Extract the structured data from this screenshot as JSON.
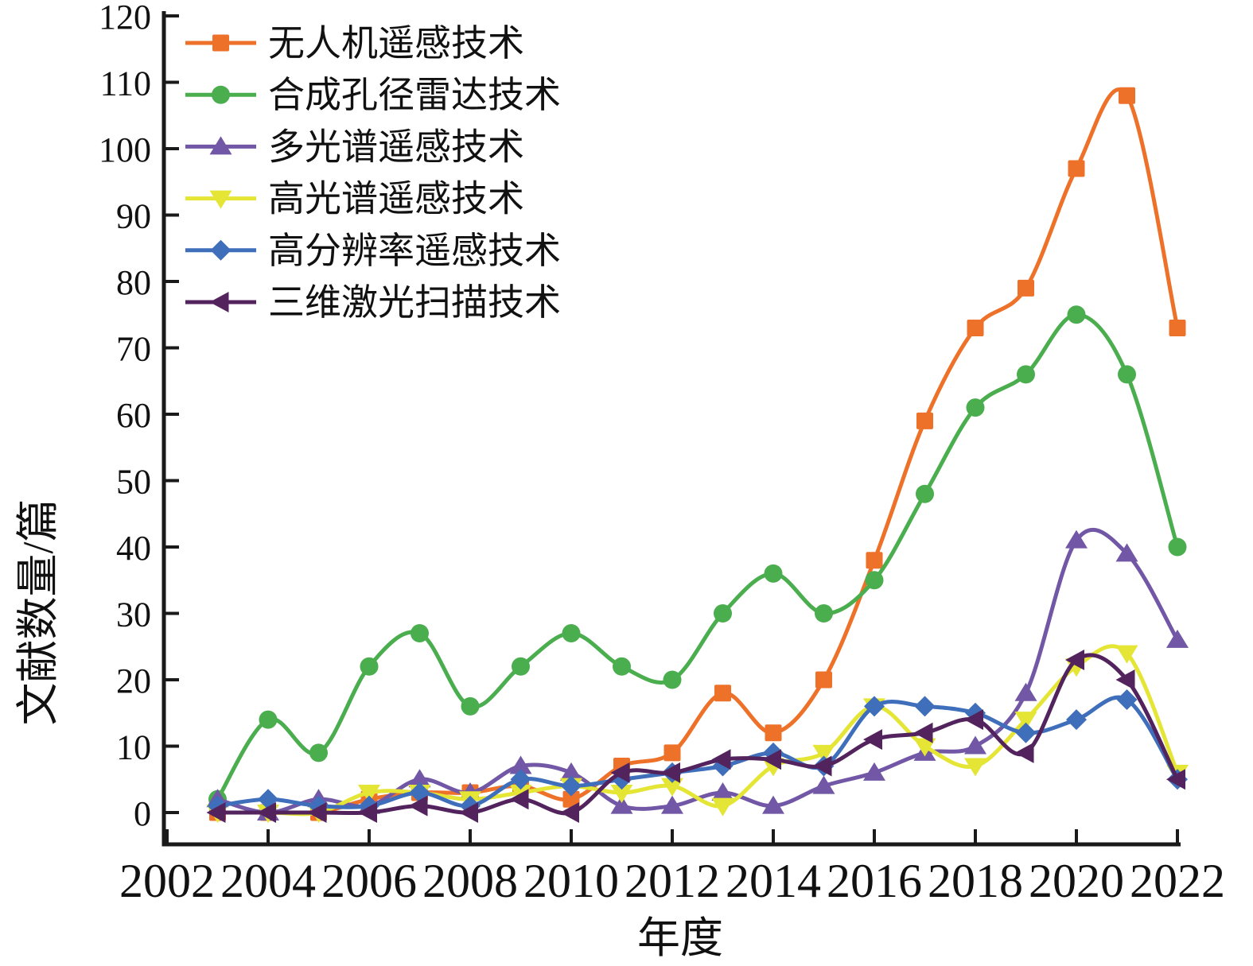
{
  "chart_data": {
    "type": "line",
    "title": "",
    "xlabel": "年度",
    "ylabel": "文献数量/篇",
    "x": [
      2003,
      2004,
      2005,
      2006,
      2007,
      2008,
      2009,
      2010,
      2011,
      2012,
      2013,
      2014,
      2015,
      2016,
      2017,
      2018,
      2019,
      2020,
      2021,
      2022
    ],
    "xticks": [
      2002,
      2004,
      2006,
      2008,
      2010,
      2012,
      2014,
      2016,
      2018,
      2020,
      2022
    ],
    "yticks": [
      0,
      10,
      20,
      30,
      40,
      50,
      60,
      70,
      80,
      90,
      100,
      110,
      120
    ],
    "xlim": [
      2002,
      2022.5
    ],
    "ylim": [
      0,
      120
    ],
    "grid": false,
    "legend_position": "upper-left",
    "axis_color": "#1a1a1a",
    "series": [
      {
        "name": "无人机遥感技术",
        "marker": "square",
        "color": "#ED7128",
        "values": [
          0,
          0,
          0,
          2,
          3,
          3,
          4,
          2,
          7,
          9,
          18,
          12,
          20,
          38,
          59,
          73,
          79,
          97,
          108,
          73
        ]
      },
      {
        "name": "合成孔径雷达技术",
        "marker": "circle",
        "color": "#4AAD4E",
        "values": [
          2,
          14,
          9,
          22,
          27,
          16,
          22,
          27,
          22,
          20,
          30,
          36,
          30,
          35,
          48,
          61,
          66,
          75,
          66,
          40
        ]
      },
      {
        "name": "多光谱遥感技术",
        "marker": "triangle-up",
        "color": "#7157A5",
        "values": [
          2,
          0,
          2,
          1,
          5,
          3,
          7,
          6,
          1,
          1,
          3,
          1,
          4,
          6,
          9,
          10,
          18,
          41,
          39,
          26
        ]
      },
      {
        "name": "高光谱遥感技术",
        "marker": "triangle-down",
        "color": "#E4E535",
        "values": [
          0,
          0,
          0,
          3,
          3,
          2,
          3,
          4,
          3,
          4,
          1,
          7,
          9,
          16,
          10,
          7,
          14,
          22,
          24,
          6
        ]
      },
      {
        "name": "高分辨率遥感技术",
        "marker": "diamond",
        "color": "#3F6EBA",
        "values": [
          1,
          2,
          1,
          1,
          3,
          1,
          5,
          4,
          5,
          6,
          7,
          9,
          7,
          16,
          16,
          15,
          12,
          14,
          17,
          5
        ]
      },
      {
        "name": "三维激光扫描技术",
        "marker": "triangle-left",
        "color": "#53235E",
        "values": [
          0,
          0,
          0,
          0,
          1,
          0,
          2,
          0,
          6,
          6,
          8,
          8,
          7,
          11,
          12,
          14,
          9,
          23,
          20,
          5
        ]
      }
    ]
  }
}
